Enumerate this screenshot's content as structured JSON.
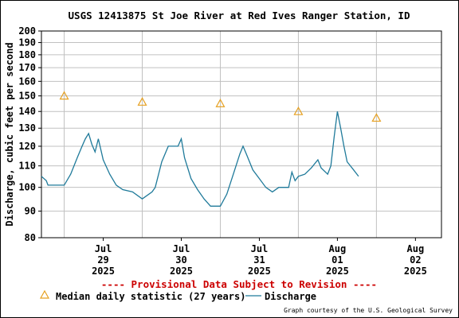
{
  "chart_data": {
    "type": "line",
    "title": "USGS 12413875 St Joe River at Red Ives Ranger Station, ID",
    "ylabel": "Discharge, cubic feet per second",
    "y_scale": "log",
    "ylim": [
      80,
      200
    ],
    "y_ticks": [
      "200",
      "190",
      "180",
      "170",
      "160",
      "150",
      "140",
      "130",
      "120",
      "110",
      "100",
      "90",
      "80"
    ],
    "xlim": [
      "2025-07-28T17:00",
      "2025-08-02T20:00"
    ],
    "x_ticks": [
      {
        "month": "Jul",
        "day": "29",
        "year": "2025"
      },
      {
        "month": "Jul",
        "day": "30",
        "year": "2025"
      },
      {
        "month": "Jul",
        "day": "31",
        "year": "2025"
      },
      {
        "month": "Aug",
        "day": "01",
        "year": "2025"
      },
      {
        "month": "Aug",
        "day": "02",
        "year": "2025"
      }
    ],
    "grid": true,
    "colors": {
      "discharge": "#1f7a9a",
      "median": "#e6a020",
      "grid": "#c0c0c0",
      "warning": "#cc0000"
    },
    "series": [
      {
        "name": "Discharge",
        "style": "line",
        "points": [
          [
            "2025-07-28T17:00",
            105
          ],
          [
            "2025-07-28T18:30",
            103
          ],
          [
            "2025-07-28T19:00",
            101
          ],
          [
            "2025-07-29T00:00",
            101
          ],
          [
            "2025-07-29T02:00",
            106
          ],
          [
            "2025-07-29T04:00",
            114
          ],
          [
            "2025-07-29T05:30",
            120
          ],
          [
            "2025-07-29T06:30",
            124
          ],
          [
            "2025-07-29T07:30",
            127
          ],
          [
            "2025-07-29T08:30",
            121
          ],
          [
            "2025-07-29T09:30",
            117
          ],
          [
            "2025-07-29T10:30",
            124
          ],
          [
            "2025-07-29T12:00",
            113
          ],
          [
            "2025-07-29T14:00",
            106
          ],
          [
            "2025-07-29T16:00",
            101
          ],
          [
            "2025-07-29T18:00",
            99
          ],
          [
            "2025-07-29T21:00",
            98
          ],
          [
            "2025-07-30T00:00",
            95
          ],
          [
            "2025-07-30T03:00",
            98
          ],
          [
            "2025-07-30T04:00",
            100
          ],
          [
            "2025-07-30T06:00",
            112
          ],
          [
            "2025-07-30T08:00",
            120
          ],
          [
            "2025-07-30T11:00",
            120
          ],
          [
            "2025-07-30T12:00",
            124
          ],
          [
            "2025-07-30T13:00",
            114
          ],
          [
            "2025-07-30T15:00",
            104
          ],
          [
            "2025-07-30T17:00",
            99
          ],
          [
            "2025-07-30T19:00",
            95
          ],
          [
            "2025-07-30T21:00",
            92
          ],
          [
            "2025-07-31T00:00",
            92
          ],
          [
            "2025-07-31T02:00",
            97
          ],
          [
            "2025-07-31T04:00",
            106
          ],
          [
            "2025-07-31T06:00",
            116
          ],
          [
            "2025-07-31T07:00",
            120
          ],
          [
            "2025-07-31T08:00",
            116
          ],
          [
            "2025-07-31T10:00",
            108
          ],
          [
            "2025-07-31T12:00",
            104
          ],
          [
            "2025-07-31T14:00",
            100
          ],
          [
            "2025-07-31T16:00",
            98
          ],
          [
            "2025-07-31T18:00",
            100
          ],
          [
            "2025-07-31T21:00",
            100
          ],
          [
            "2025-07-31T22:00",
            107
          ],
          [
            "2025-07-31T23:00",
            103
          ],
          [
            "2025-08-01T00:00",
            105
          ],
          [
            "2025-08-01T02:00",
            106
          ],
          [
            "2025-08-01T04:00",
            109
          ],
          [
            "2025-08-01T06:00",
            113
          ],
          [
            "2025-08-01T07:00",
            109
          ],
          [
            "2025-08-01T09:00",
            106
          ],
          [
            "2025-08-01T10:00",
            110
          ],
          [
            "2025-08-01T11:00",
            125
          ],
          [
            "2025-08-01T12:00",
            140
          ],
          [
            "2025-08-01T13:00",
            130
          ],
          [
            "2025-08-01T14:00",
            120
          ],
          [
            "2025-08-01T15:00",
            112
          ],
          [
            "2025-08-01T16:00",
            110
          ],
          [
            "2025-08-01T17:00",
            108
          ],
          [
            "2025-08-01T18:00",
            106
          ],
          [
            "2025-08-01T18:30",
            105
          ]
        ]
      },
      {
        "name": "Median daily statistic (27 years)",
        "style": "marker-triangle",
        "points": [
          [
            "2025-07-29T00:00",
            150
          ],
          [
            "2025-07-30T00:00",
            146
          ],
          [
            "2025-07-31T00:00",
            145
          ],
          [
            "2025-08-01T00:00",
            140
          ],
          [
            "2025-08-02T00:00",
            136
          ]
        ]
      }
    ]
  },
  "notice": "---- Provisional Data Subject to Revision ----",
  "legend": {
    "median_label": "Median daily statistic (27 years)",
    "discharge_label": "Discharge"
  },
  "credit": "Graph courtesy of the U.S. Geological Survey"
}
